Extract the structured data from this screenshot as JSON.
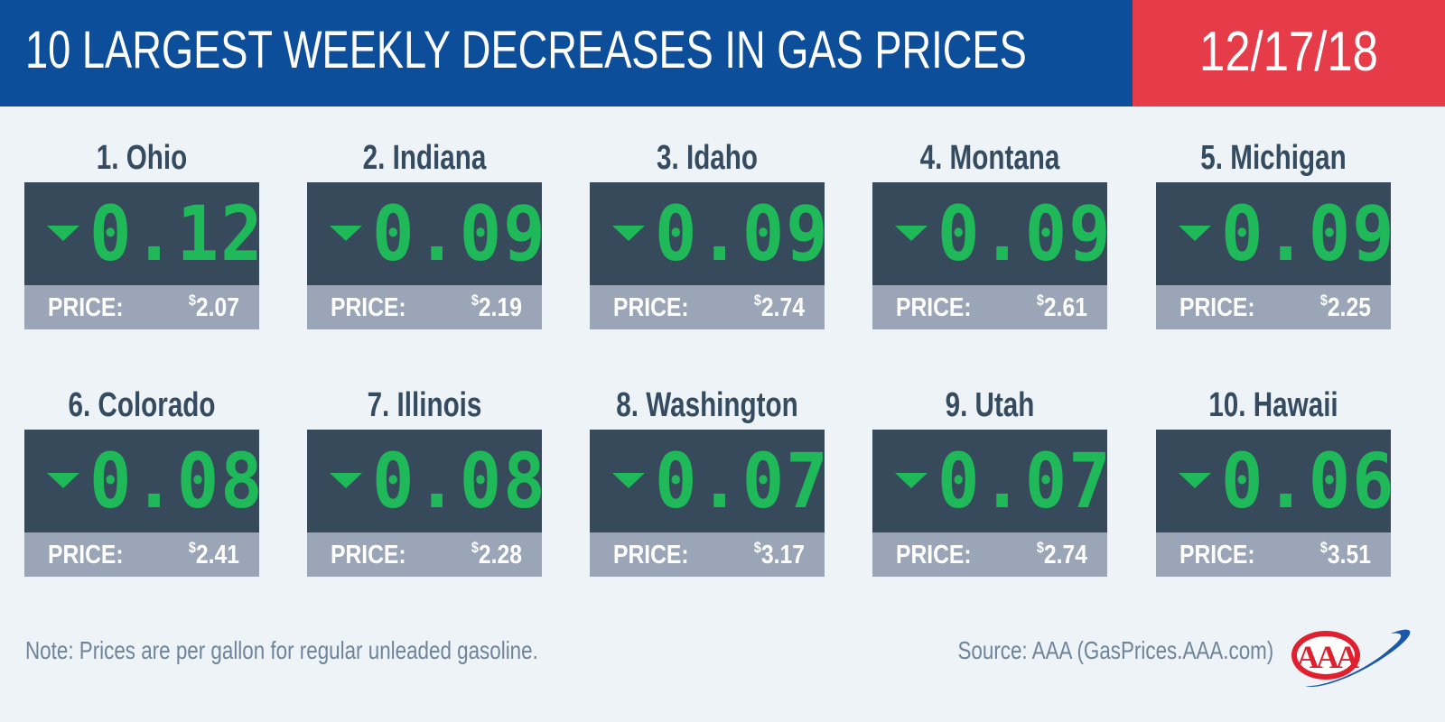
{
  "header": {
    "title": "10 LARGEST WEEKLY DECREASES IN GAS PRICES",
    "date": "12/17/18"
  },
  "colors": {
    "header_blue": "#0d4e9b",
    "date_red": "#e63c4a",
    "display_bg": "#364a5c",
    "digit_green": "#1fb95a",
    "price_bar": "#9aa6b7"
  },
  "price_label": "PRICE:",
  "currency": "$",
  "states": [
    {
      "name": "1. Ohio",
      "change": "0.12",
      "price": "2.07"
    },
    {
      "name": "2. Indiana",
      "change": "0.09",
      "price": "2.19"
    },
    {
      "name": "3. Idaho",
      "change": "0.09",
      "price": "2.74"
    },
    {
      "name": "4. Montana",
      "change": "0.09",
      "price": "2.61"
    },
    {
      "name": "5. Michigan",
      "change": "0.09",
      "price": "2.25"
    },
    {
      "name": "6. Colorado",
      "change": "0.08",
      "price": "2.41"
    },
    {
      "name": "7. Illinois",
      "change": "0.08",
      "price": "2.28"
    },
    {
      "name": "8. Washington",
      "change": "0.07",
      "price": "3.17"
    },
    {
      "name": "9. Utah",
      "change": "0.07",
      "price": "2.74"
    },
    {
      "name": "10. Hawaii",
      "change": "0.06",
      "price": "3.51"
    }
  ],
  "footer": {
    "note": "Note: Prices are per gallon for regular unleaded gasoline.",
    "source": "Source: AAA (GasPrices.AAA.com)",
    "logo_text": "AAA"
  }
}
